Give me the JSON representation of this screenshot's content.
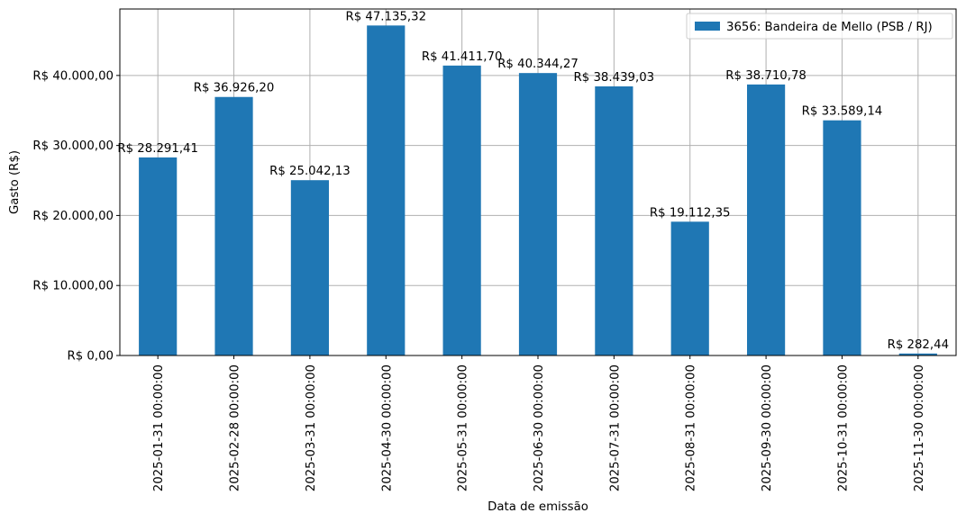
{
  "chart_data": {
    "type": "bar",
    "categories": [
      "2025-01-31 00:00:00",
      "2025-02-28 00:00:00",
      "2025-03-31 00:00:00",
      "2025-04-30 00:00:00",
      "2025-05-31 00:00:00",
      "2025-06-30 00:00:00",
      "2025-07-31 00:00:00",
      "2025-08-31 00:00:00",
      "2025-09-30 00:00:00",
      "2025-10-31 00:00:00",
      "2025-11-30 00:00:00"
    ],
    "series": [
      {
        "name": "3656: Bandeira de Mello (PSB / RJ)",
        "color": "#1f77b4",
        "values": [
          28291.41,
          36926.2,
          25042.13,
          47135.32,
          41411.7,
          40344.27,
          38439.03,
          19112.35,
          38710.78,
          33589.14,
          282.44
        ],
        "data_labels": [
          "R$ 28.291,41",
          "R$ 36.926,20",
          "R$ 25.042,13",
          "R$ 47.135,32",
          "R$ 41.411,70",
          "R$ 40.344,27",
          "R$ 38.439,03",
          "R$ 19.112,35",
          "R$ 38.710,78",
          "R$ 33.589,14",
          "R$ 282,44"
        ]
      }
    ],
    "title": "",
    "xlabel": "Data de emissão",
    "ylabel": "Gasto (R$)",
    "ylim": [
      0,
      49492
    ],
    "y_ticks": [
      0,
      10000,
      20000,
      30000,
      40000
    ],
    "y_tick_labels": [
      "R$ 0,00",
      "R$ 10.000,00",
      "R$ 20.000,00",
      "R$ 30.000,00",
      "R$ 40.000,00"
    ],
    "grid": true,
    "legend_position": "top-right"
  }
}
